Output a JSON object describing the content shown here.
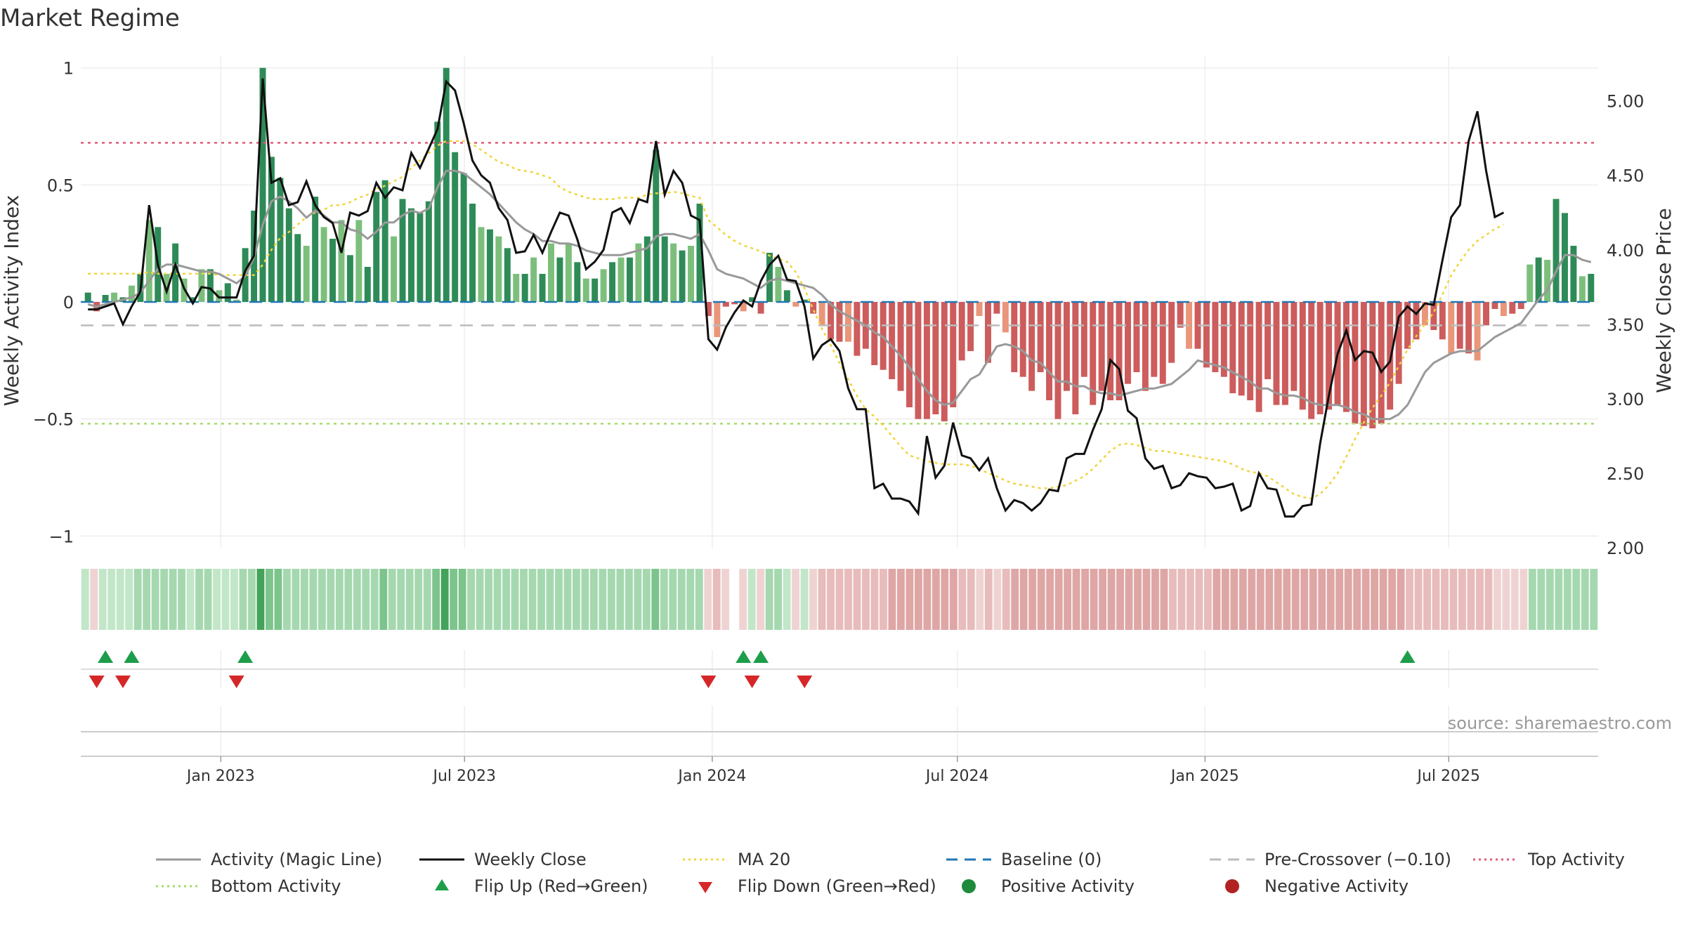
{
  "title": "Market Regime",
  "source": "source: sharemaestro.com",
  "colors": {
    "strong_green": "#2e8b57",
    "light_green": "#7cbf7c",
    "strong_red": "#cd5c5c",
    "light_red": "#e9967a",
    "close_line": "#111111",
    "activity_line": "#999999",
    "ma_line": "#f2d43d",
    "baseline": "#1f77b4",
    "pre_crossover": "#bbbbbb",
    "top_activity": "#e05a7a",
    "bottom_activity": "#a6d96a",
    "flip_up": "#1e9e4a",
    "flip_down": "#d62728",
    "positive_dot": "#1f8b3a",
    "negative_dot": "#b22222"
  },
  "legend": [
    {
      "label": "Activity (Magic Line)",
      "icon": "solid-gray-line"
    },
    {
      "label": "Weekly Close",
      "icon": "solid-black-line"
    },
    {
      "label": "MA 20",
      "icon": "dotted-yellow-line"
    },
    {
      "label": "Baseline (0)",
      "icon": "dashed-blue-line"
    },
    {
      "label": "Pre-Crossover (−0.10)",
      "icon": "dashed-gray-line"
    },
    {
      "label": "Top Activity",
      "icon": "dotted-pink-line"
    },
    {
      "label": "Bottom Activity",
      "icon": "dotted-green-line"
    },
    {
      "label": "Flip Up (Red→Green)",
      "icon": "green-up-triangle"
    },
    {
      "label": "Flip Down (Green→Red)",
      "icon": "red-down-triangle"
    },
    {
      "label": "Positive Activity",
      "icon": "green-dot"
    },
    {
      "label": "Negative Activity",
      "icon": "red-dot"
    }
  ],
  "chart_data": {
    "type": "bar",
    "title": "Market Regime",
    "ylabel": "Weekly Activity Index",
    "ylabel_right": "Weekly Close Price",
    "ylim": [
      -1.05,
      1.05
    ],
    "ylim_right": [
      2.0,
      5.3
    ],
    "yticks": [
      1,
      0.5,
      0,
      -0.5,
      -1
    ],
    "yticks_labels": [
      "1",
      "0.5",
      "0",
      "−0.5",
      "−1"
    ],
    "yticks_right": [
      5.0,
      4.5,
      4.0,
      3.5,
      3.0,
      2.5,
      2.0
    ],
    "yticks_right_labels": [
      "5.00",
      "4.50",
      "4.00",
      "3.50",
      "3.00",
      "2.50",
      "2.00"
    ],
    "x_start": "2022-09-19",
    "x_end": "2025-10-20",
    "xticks": [
      "2023-01-01",
      "2023-07-01",
      "2024-01-01",
      "2024-07-01",
      "2025-01-01",
      "2025-07-01"
    ],
    "xticks_labels": [
      "Jan 2023",
      "Jul 2023",
      "Jan 2024",
      "Jul 2024",
      "Jan 2025",
      "Jul 2025"
    ],
    "reference_lines": {
      "top_activity": 0.68,
      "bottom_activity": -0.52,
      "pre_crossover": -0.1,
      "baseline": 0
    },
    "grid": true,
    "legend_position": "bottom",
    "activity": [
      0.04,
      -0.04,
      0.03,
      0.04,
      0.02,
      0.07,
      0.12,
      0.35,
      0.32,
      0.12,
      0.25,
      0.1,
      0.02,
      0.14,
      0.14,
      0.05,
      0.08,
      0.01,
      0.23,
      0.39,
      1.0,
      0.62,
      0.53,
      0.4,
      0.29,
      0.24,
      0.45,
      0.32,
      0.27,
      0.35,
      0.2,
      0.35,
      0.15,
      0.47,
      0.52,
      0.28,
      0.44,
      0.4,
      0.38,
      0.43,
      0.77,
      1.0,
      0.64,
      0.55,
      0.42,
      0.32,
      0.31,
      0.28,
      0.23,
      0.12,
      0.12,
      0.19,
      0.12,
      0.25,
      0.19,
      0.25,
      0.17,
      0.1,
      0.1,
      0.14,
      0.17,
      0.19,
      0.19,
      0.25,
      0.28,
      0.65,
      0.28,
      0.25,
      0.22,
      0.24,
      0.42,
      -0.06,
      -0.15,
      -0.02,
      -0.01,
      -0.04,
      0.02,
      -0.05,
      0.21,
      0.15,
      0.05,
      -0.02,
      0.01,
      -0.05,
      -0.1,
      -0.16,
      -0.17,
      -0.17,
      -0.23,
      -0.2,
      -0.27,
      -0.29,
      -0.33,
      -0.38,
      -0.45,
      -0.5,
      -0.5,
      -0.48,
      -0.51,
      -0.45,
      -0.25,
      -0.21,
      -0.06,
      -0.26,
      -0.05,
      -0.13,
      -0.3,
      -0.32,
      -0.38,
      -0.3,
      -0.42,
      -0.5,
      -0.38,
      -0.48,
      -0.32,
      -0.44,
      -0.38,
      -0.42,
      -0.42,
      -0.35,
      -0.3,
      -0.38,
      -0.32,
      -0.35,
      -0.26,
      -0.11,
      -0.2,
      -0.2,
      -0.28,
      -0.3,
      -0.32,
      -0.39,
      -0.4,
      -0.42,
      -0.47,
      -0.33,
      -0.44,
      -0.44,
      -0.38,
      -0.46,
      -0.5,
      -0.48,
      -0.46,
      -0.44,
      -0.47,
      -0.52,
      -0.53,
      -0.54,
      -0.52,
      -0.46,
      -0.35,
      -0.2,
      -0.16,
      -0.1,
      -0.12,
      -0.16,
      -0.22,
      -0.2,
      -0.22,
      -0.25,
      -0.1,
      -0.03,
      -0.06,
      -0.05,
      -0.03,
      0.16,
      0.19,
      0.18,
      0.44,
      0.38,
      0.24,
      0.11,
      0.12
    ],
    "activity_line": [
      -0.01,
      -0.02,
      -0.01,
      0.0,
      0.01,
      0.02,
      0.04,
      0.09,
      0.14,
      0.16,
      0.16,
      0.15,
      0.14,
      0.13,
      0.13,
      0.12,
      0.1,
      0.08,
      0.11,
      0.19,
      0.33,
      0.43,
      0.45,
      0.43,
      0.4,
      0.36,
      0.39,
      0.37,
      0.34,
      0.34,
      0.31,
      0.3,
      0.27,
      0.3,
      0.34,
      0.34,
      0.37,
      0.39,
      0.38,
      0.4,
      0.49,
      0.56,
      0.56,
      0.55,
      0.52,
      0.49,
      0.46,
      0.42,
      0.38,
      0.34,
      0.31,
      0.29,
      0.26,
      0.26,
      0.25,
      0.25,
      0.24,
      0.22,
      0.21,
      0.2,
      0.2,
      0.2,
      0.21,
      0.22,
      0.23,
      0.28,
      0.29,
      0.29,
      0.28,
      0.27,
      0.29,
      0.22,
      0.14,
      0.12,
      0.11,
      0.1,
      0.08,
      0.06,
      0.09,
      0.1,
      0.09,
      0.08,
      0.07,
      0.06,
      0.03,
      -0.01,
      -0.04,
      -0.06,
      -0.08,
      -0.1,
      -0.13,
      -0.15,
      -0.19,
      -0.23,
      -0.28,
      -0.33,
      -0.38,
      -0.42,
      -0.44,
      -0.43,
      -0.38,
      -0.33,
      -0.31,
      -0.25,
      -0.19,
      -0.18,
      -0.19,
      -0.21,
      -0.25,
      -0.26,
      -0.3,
      -0.34,
      -0.34,
      -0.36,
      -0.36,
      -0.38,
      -0.39,
      -0.39,
      -0.4,
      -0.39,
      -0.38,
      -0.37,
      -0.37,
      -0.36,
      -0.35,
      -0.32,
      -0.29,
      -0.25,
      -0.26,
      -0.27,
      -0.28,
      -0.3,
      -0.32,
      -0.34,
      -0.37,
      -0.37,
      -0.39,
      -0.4,
      -0.4,
      -0.41,
      -0.43,
      -0.44,
      -0.44,
      -0.44,
      -0.45,
      -0.47,
      -0.48,
      -0.5,
      -0.5,
      -0.5,
      -0.48,
      -0.44,
      -0.37,
      -0.3,
      -0.26,
      -0.24,
      -0.22,
      -0.21,
      -0.21,
      -0.21,
      -0.18,
      -0.15,
      -0.13,
      -0.11,
      -0.09,
      -0.04,
      0.01,
      0.05,
      0.13,
      0.2,
      0.2,
      0.18,
      0.17
    ],
    "close": [
      3.6,
      3.6,
      3.62,
      3.64,
      3.5,
      3.62,
      3.72,
      4.3,
      3.9,
      3.72,
      3.9,
      3.74,
      3.64,
      3.75,
      3.74,
      3.68,
      3.68,
      3.68,
      3.86,
      3.96,
      5.15,
      4.45,
      4.48,
      4.3,
      4.32,
      4.46,
      4.3,
      4.22,
      4.18,
      3.98,
      4.25,
      4.23,
      4.26,
      4.45,
      4.35,
      4.42,
      4.4,
      4.65,
      4.55,
      4.68,
      4.81,
      5.13,
      5.07,
      4.85,
      4.6,
      4.5,
      4.45,
      4.28,
      4.2,
      3.98,
      3.99,
      4.1,
      3.98,
      4.12,
      4.25,
      4.23,
      4.07,
      3.87,
      3.92,
      4.0,
      4.25,
      4.28,
      4.18,
      4.34,
      4.32,
      4.73,
      4.37,
      4.53,
      4.45,
      4.23,
      4.2,
      3.4,
      3.33,
      3.48,
      3.58,
      3.66,
      3.62,
      3.79,
      3.9,
      3.96,
      3.8,
      3.79,
      3.62,
      3.27,
      3.36,
      3.4,
      3.32,
      3.07,
      2.93,
      2.93,
      2.4,
      2.43,
      2.33,
      2.33,
      2.31,
      2.23,
      2.75,
      2.47,
      2.55,
      2.84,
      2.62,
      2.6,
      2.52,
      2.6,
      2.4,
      2.25,
      2.32,
      2.3,
      2.25,
      2.3,
      2.39,
      2.38,
      2.6,
      2.63,
      2.63,
      2.79,
      2.93,
      3.26,
      3.2,
      2.92,
      2.87,
      2.6,
      2.53,
      2.55,
      2.4,
      2.42,
      2.5,
      2.48,
      2.47,
      2.4,
      2.41,
      2.43,
      2.25,
      2.28,
      2.5,
      2.4,
      2.39,
      2.21,
      2.21,
      2.28,
      2.29,
      2.7,
      3.02,
      3.3,
      3.46,
      3.26,
      3.32,
      3.31,
      3.18,
      3.25,
      3.55,
      3.62,
      3.57,
      3.64,
      3.63,
      3.93,
      4.22,
      4.3,
      4.73,
      4.93,
      4.53,
      4.22,
      4.25
    ],
    "ma20": [
      3.84,
      3.84,
      3.84,
      3.84,
      3.84,
      3.84,
      3.84,
      3.85,
      3.84,
      3.84,
      3.84,
      3.84,
      3.84,
      3.84,
      3.84,
      3.83,
      3.83,
      3.83,
      3.83,
      3.83,
      3.9,
      4.0,
      4.08,
      4.12,
      4.17,
      4.22,
      4.25,
      4.27,
      4.3,
      4.3,
      4.32,
      4.35,
      4.37,
      4.41,
      4.43,
      4.46,
      4.49,
      4.55,
      4.6,
      4.65,
      4.7,
      4.73,
      4.73,
      4.73,
      4.71,
      4.67,
      4.63,
      4.59,
      4.57,
      4.54,
      4.53,
      4.52,
      4.5,
      4.48,
      4.42,
      4.39,
      4.37,
      4.35,
      4.34,
      4.34,
      4.34,
      4.35,
      4.35,
      4.35,
      4.37,
      4.38,
      4.38,
      4.39,
      4.38,
      4.36,
      4.35,
      4.2,
      4.15,
      4.1,
      4.06,
      4.03,
      4.01,
      3.99,
      3.96,
      3.94,
      3.92,
      3.85,
      3.74,
      3.6,
      3.47,
      3.36,
      3.24,
      3.13,
      3.02,
      2.93,
      2.88,
      2.82,
      2.75,
      2.68,
      2.62,
      2.6,
      2.58,
      2.57,
      2.56,
      2.56,
      2.56,
      2.55,
      2.53,
      2.5,
      2.48,
      2.45,
      2.43,
      2.42,
      2.41,
      2.4,
      2.4,
      2.41,
      2.42,
      2.45,
      2.48,
      2.53,
      2.59,
      2.65,
      2.69,
      2.7,
      2.69,
      2.67,
      2.65,
      2.65,
      2.64,
      2.63,
      2.62,
      2.61,
      2.6,
      2.59,
      2.58,
      2.56,
      2.53,
      2.51,
      2.5,
      2.48,
      2.44,
      2.4,
      2.36,
      2.34,
      2.33,
      2.36,
      2.42,
      2.5,
      2.61,
      2.73,
      2.84,
      2.94,
      3.02,
      3.11,
      3.22,
      3.33,
      3.42,
      3.5,
      3.58,
      3.7,
      3.83,
      3.92,
      4.0,
      4.06,
      4.1,
      4.14,
      4.17
    ],
    "flip_up_idx": [
      2,
      5,
      18,
      75,
      77,
      151
    ],
    "flip_down_idx": [
      1,
      4,
      17,
      71,
      76,
      82
    ]
  }
}
